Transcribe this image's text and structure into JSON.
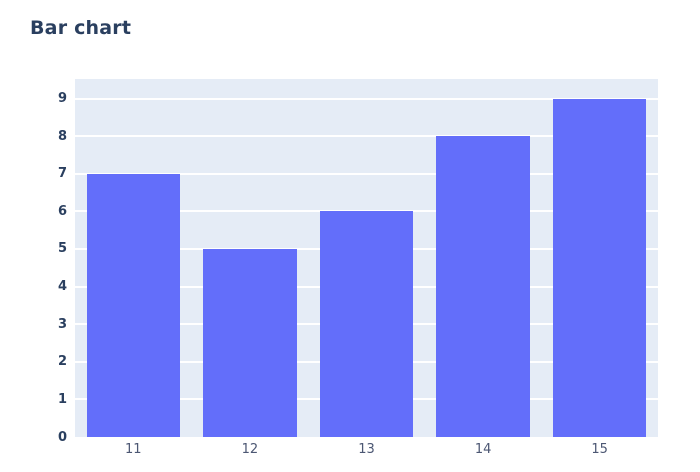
{
  "header": {
    "title": "Bar chart"
  },
  "chart_data": {
    "type": "bar",
    "title": "Bar chart",
    "categories": [
      "11",
      "12",
      "13",
      "14",
      "15"
    ],
    "values": [
      7,
      5,
      6,
      8,
      9
    ],
    "xlabel": "",
    "ylabel": "",
    "ylim": [
      0,
      9.52
    ],
    "yticks": [
      0,
      1,
      2,
      3,
      4,
      5,
      6,
      7,
      8,
      9
    ],
    "grid": true,
    "legend": "none",
    "bar_width_fraction": 0.8,
    "colors": {
      "bar": "#636efa",
      "plot_background": "#e5ecf6",
      "gridline": "#ffffff",
      "page_background": "#ffffff",
      "title_text": "#2a3f5f",
      "ytick_text": "#2a3f5f",
      "xtick_text": "#4c5773"
    }
  }
}
